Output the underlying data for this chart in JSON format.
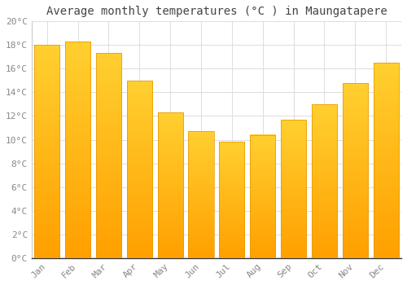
{
  "title": "Average monthly temperatures (°C ) in Maungatapere",
  "months": [
    "Jan",
    "Feb",
    "Mar",
    "Apr",
    "May",
    "Jun",
    "Jul",
    "Aug",
    "Sep",
    "Oct",
    "Nov",
    "Dec"
  ],
  "values": [
    18.0,
    18.3,
    17.3,
    15.0,
    12.3,
    10.7,
    9.8,
    10.4,
    11.7,
    13.0,
    14.8,
    16.5
  ],
  "bar_color_top": "#FDD835",
  "bar_color_bottom": "#FFA000",
  "bar_edge_color": "#E69500",
  "background_color": "#FFFFFF",
  "grid_color": "#DDDDDD",
  "ylim": [
    0,
    20
  ],
  "ytick_step": 2,
  "title_fontsize": 10,
  "tick_fontsize": 8,
  "font_family": "monospace",
  "tick_color": "#888888",
  "title_color": "#444444"
}
